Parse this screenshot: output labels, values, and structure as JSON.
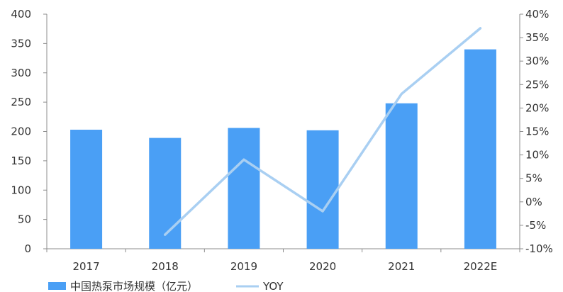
{
  "chart_data": {
    "type": "bar",
    "categories": [
      "2017",
      "2018",
      "2019",
      "2020",
      "2021",
      "2022E"
    ],
    "series": [
      {
        "name": "中国热泵市场规模（亿元）",
        "type": "bar",
        "axis": "left",
        "values": [
          203,
          189,
          206,
          202,
          248,
          340
        ]
      },
      {
        "name": "YOY",
        "type": "line",
        "axis": "right",
        "values": [
          null,
          -7,
          9,
          -2,
          23,
          37
        ]
      }
    ],
    "y_left": {
      "min": 0,
      "max": 400,
      "ticks": [
        "0",
        "50",
        "100",
        "150",
        "200",
        "250",
        "300",
        "350",
        "400"
      ]
    },
    "y_right": {
      "min": -10,
      "max": 40,
      "ticks": [
        "-10%",
        "-5%",
        "0%",
        "5%",
        "10%",
        "15%",
        "20%",
        "25%",
        "30%",
        "35%",
        "40%"
      ]
    },
    "grid": false,
    "legend_position": "bottom-left",
    "colors": {
      "bar": "#4a9ff5",
      "line": "#a9cff2",
      "axis": "#8c8c8c",
      "text": "#333333"
    }
  }
}
